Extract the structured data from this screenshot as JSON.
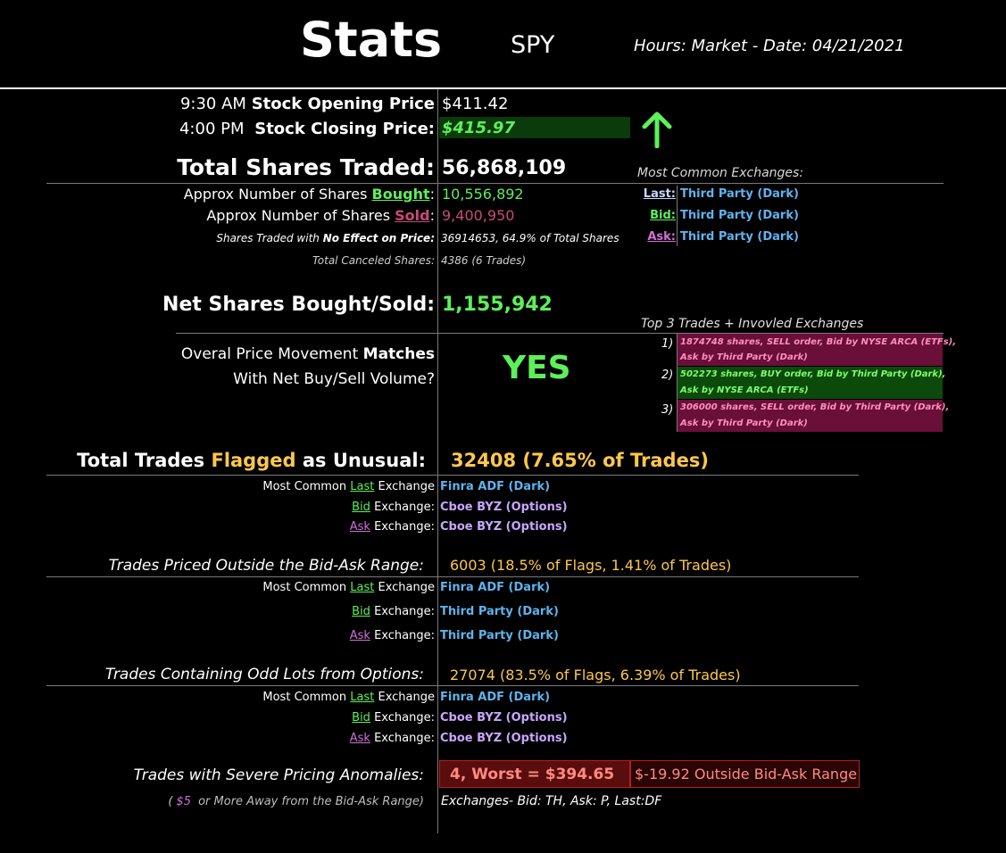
{
  "header": {
    "title": "Stats",
    "ticker": "SPY",
    "hours_date": "Hours: Market - Date: 04/21/2021"
  },
  "prices": {
    "open_time": "9:30 AM",
    "open_label": "Stock Opening Price",
    "open_value": "$411.42",
    "close_time": "4:00 PM",
    "close_label": "Stock Closing Price:",
    "close_value": "$415.97",
    "trend_icon": "up-arrow-icon"
  },
  "volume": {
    "total_label": "Total Shares Traded:",
    "total_value": "56,868,109",
    "bought_prefix": "Approx Number of Shares ",
    "bought_word": "Bought",
    "bought_value": "10,556,892",
    "sold_prefix": "Approx Number of Shares ",
    "sold_word": "Sold",
    "sold_value": "9,400,950",
    "no_effect_prefix": "Shares Traded with ",
    "no_effect_bold": "No Effect on Price:",
    "no_effect_value": "36914653, 64.9% of Total Shares",
    "canceled_label": "Total Canceled Shares:",
    "canceled_value": "4386 (6 Trades)",
    "net_label": "Net Shares Bought/Sold:",
    "net_value": "1,155,942"
  },
  "common_exchanges": {
    "title": "Most Common Exchanges:",
    "rows": [
      {
        "label": "Last:",
        "value": "Third Party (Dark)"
      },
      {
        "label": "Bid:",
        "value": "Third Party (Dark)"
      },
      {
        "label": "Ask:",
        "value": "Third Party (Dark)"
      }
    ]
  },
  "movement": {
    "line1_prefix": "Overal Price Movement ",
    "line1_bold": "Matches",
    "line2": "With Net Buy/Sell Volume?",
    "answer": "YES"
  },
  "top_trades": {
    "title": "Top 3 Trades + Invovled Exchanges",
    "items": [
      {
        "num": "1)",
        "line1": "1874748 shares, SELL order, Bid by NYSE ARCA (ETFs),",
        "line2": "Ask by Third Party (Dark)"
      },
      {
        "num": "2)",
        "line1": "502273 shares, BUY order, Bid by Third Party (Dark),",
        "line2": "Ask by NYSE ARCA (ETFs)"
      },
      {
        "num": "3)",
        "line1": "306000 shares, SELL order, Bid by Third Party (Dark),",
        "line2": "Ask by Third Party (Dark)"
      }
    ]
  },
  "flagged": {
    "label_pre": "Total Trades ",
    "label_word": "Flagged",
    "label_post": " as Unusual:",
    "value": "32408 (7.65% of Trades)",
    "last_prefix": "Most Common ",
    "last_word": "Last",
    "bid_word": "Bid",
    "ask_word": "Ask",
    "exchange_suffix": " Exchange",
    "exchange_colon": " Exchange:",
    "last_value": "Finra ADF (Dark)",
    "bid_value": "Cboe BYZ (Options)",
    "ask_value": "Cboe BYZ (Options)"
  },
  "outside": {
    "label": "Trades Priced Outside the Bid-Ask Range:",
    "value": "6003 (18.5% of Flags, 1.41% of Trades)",
    "last_value": "Finra ADF (Dark)",
    "bid_value": "Third Party (Dark)",
    "ask_value": "Third Party (Dark)"
  },
  "oddlots": {
    "label": "Trades Containing Odd Lots from Options:",
    "value": "27074 (83.5% of Flags, 6.39% of Trades)",
    "last_value": "Finra ADF (Dark)",
    "bid_value": "Cboe BYZ (Options)",
    "ask_value": "Cboe BYZ (Options)"
  },
  "severe": {
    "label": "Trades with Severe Pricing Anomalies:",
    "value": "4, Worst = $394.65",
    "outside": "$-19.92 Outside Bid-Ask Range",
    "note_open": "(",
    "note_amount": "$5",
    "note_rest": " or More Away from the Bid-Ask Range)",
    "exchanges": "Exchanges- Bid: TH, Ask: P, Last:DF"
  },
  "colors": {
    "background": "#000000",
    "positive": "#5df05a",
    "negative": "#c84a7a",
    "exchange": "#5eb3ee",
    "options": "#c8a6ff",
    "flag": "#ffc84a",
    "sell_row": "#6a0f37",
    "buy_row": "#0b4a0b",
    "severe_box": "#5a0d0d"
  }
}
